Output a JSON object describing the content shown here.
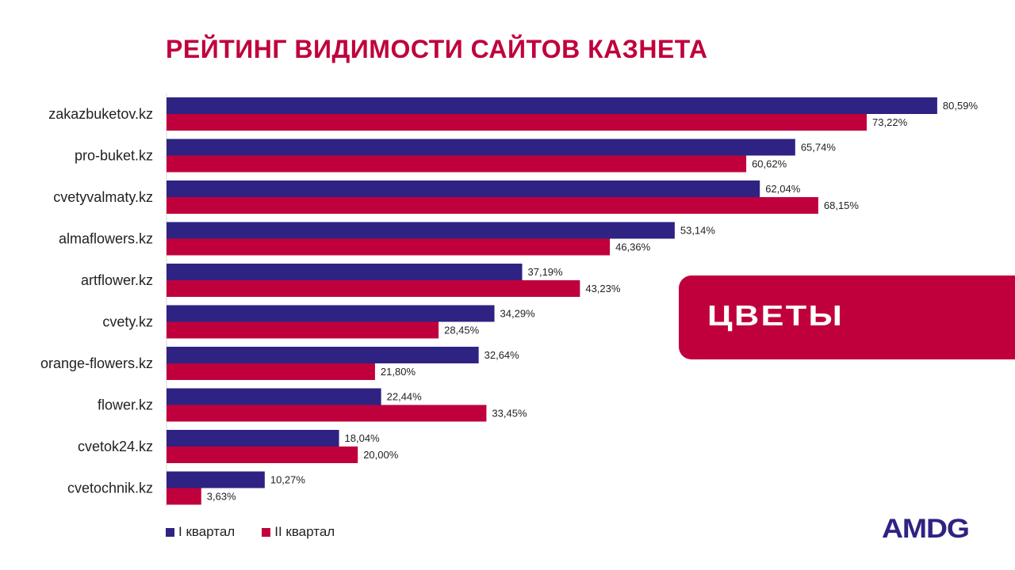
{
  "colors": {
    "q1": "#2e2382",
    "q2": "#c0003c",
    "title": "#c0003c"
  },
  "badge": {
    "logo_text": "ЦВЕТЫ"
  },
  "brand": {
    "logo_text": "AMDG"
  },
  "chart_data": {
    "type": "bar",
    "orientation": "horizontal",
    "title": "РЕЙТИНГ ВИДИМОСТИ САЙТОВ КАЗНЕТА",
    "categories": [
      "zakazbuketov.kz",
      "pro-buket.kz",
      "cvetyvalmaty.kz",
      "almaflowers.kz",
      "artflower.kz",
      "cvety.kz",
      "orange-flowers.kz",
      "flower.kz",
      "cvetok24.kz",
      "cvetochnik.kz"
    ],
    "series": [
      {
        "name": "I квартал",
        "values": [
          80.59,
          65.74,
          62.04,
          53.14,
          37.19,
          34.29,
          32.64,
          22.44,
          18.04,
          10.27
        ],
        "labels": [
          "80,59%",
          "65,74%",
          "62,04%",
          "53,14%",
          "37,19%",
          "34,29%",
          "32,64%",
          "22,44%",
          "18,04%",
          "10,27%"
        ]
      },
      {
        "name": "II квартал",
        "values": [
          73.22,
          60.62,
          68.15,
          46.36,
          43.23,
          28.45,
          21.8,
          33.45,
          20.0,
          3.63
        ],
        "labels": [
          "73,22%",
          "60,62%",
          "68,15%",
          "46,36%",
          "43,23%",
          "28,45%",
          "21,80%",
          "33,45%",
          "20,00%",
          "3,63%"
        ]
      }
    ],
    "xlim": [
      0,
      100
    ],
    "grid": false,
    "legend_position": "bottom-left"
  }
}
